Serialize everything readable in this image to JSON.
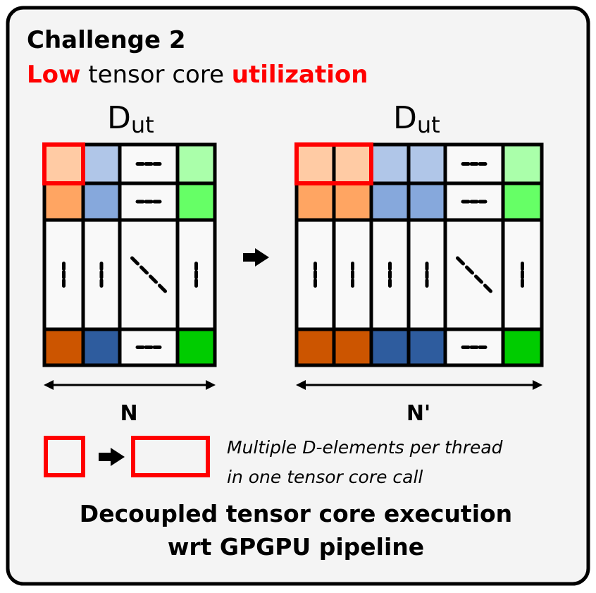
{
  "title": "Challenge 2",
  "subtitle": {
    "part1": "Low",
    "part2": " tensor core ",
    "part3": "utilization"
  },
  "left_matrix": {
    "label_main": "D",
    "label_sub": "ut",
    "width_label": "N"
  },
  "right_matrix": {
    "label_main": "D",
    "label_sub": "ut",
    "width_label": "N'"
  },
  "legend_text": [
    "Multiple D-elements per thread",
    "in one tensor core call"
  ],
  "conclusion": [
    "Decoupled tensor core execution",
    "wrt GPGPU pipeline"
  ],
  "colors": {
    "highlight": "#FF0000",
    "background": "#F4F4F4",
    "cell": "#F9F9F9",
    "orange": [
      "#FFCBA4",
      "#FFA562",
      "#CC5500"
    ],
    "blue": [
      "#B0C6E8",
      "#86A8DC",
      "#2E5C9E"
    ],
    "green": [
      "#AAFFAA",
      "#66FF66",
      "#00CC00"
    ]
  }
}
